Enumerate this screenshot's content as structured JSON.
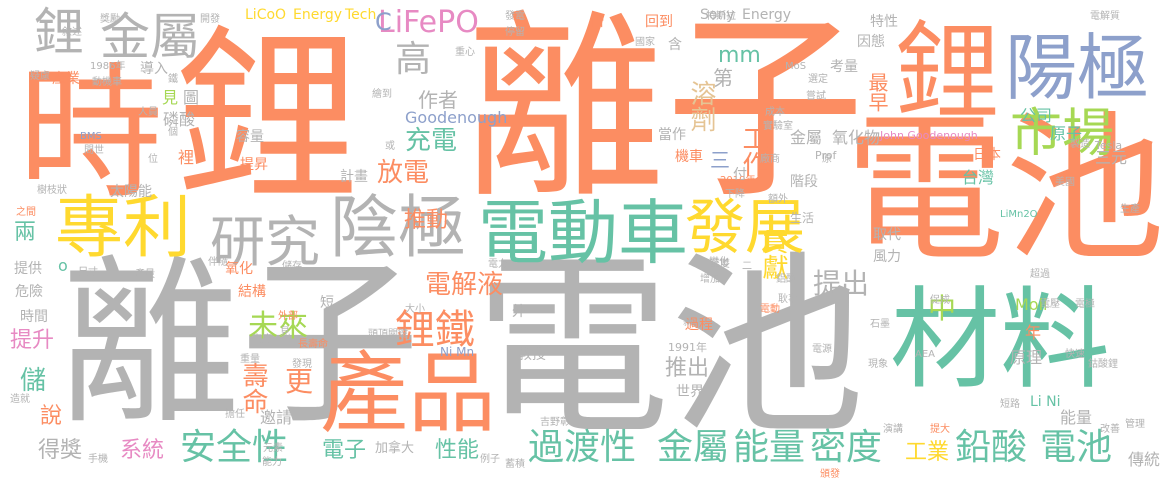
{
  "palette": {
    "orange": "#fc8d62",
    "green": "#66c2a5",
    "blue": "#8da0cb",
    "gray": "#b3b3b3",
    "yellow": "#e5c494",
    "gold": "#ffd92f",
    "pink": "#e78ac3",
    "lime": "#a6d854"
  },
  "words": [
    {
      "text": "離子",
      "color": "orange"
    },
    {
      "text": "電池",
      "color": "gray"
    },
    {
      "text": "離子",
      "color": "gray"
    },
    {
      "text": "電池",
      "color": "orange"
    },
    {
      "text": "鋰",
      "color": "orange"
    },
    {
      "text": "時",
      "color": "orange"
    },
    {
      "text": "材料",
      "color": "green"
    },
    {
      "text": "產品",
      "color": "orange"
    },
    {
      "text": "陽極",
      "color": "blue"
    },
    {
      "text": "鋰",
      "color": "orange"
    },
    {
      "text": "專利",
      "color": "gold"
    },
    {
      "text": "電動車",
      "color": "green"
    },
    {
      "text": "陰極",
      "color": "gray"
    },
    {
      "text": "研究",
      "color": "gray"
    },
    {
      "text": "市場",
      "color": "lime"
    },
    {
      "text": "發展",
      "color": "gold"
    },
    {
      "text": "金屬",
      "color": "gray"
    },
    {
      "text": "鋰",
      "color": "gray"
    },
    {
      "text": "安全性",
      "color": "green"
    },
    {
      "text": "過渡性",
      "color": "green"
    },
    {
      "text": "金屬",
      "color": "green"
    },
    {
      "text": "能量",
      "color": "green"
    },
    {
      "text": "密度",
      "color": "green"
    },
    {
      "text": "鉛酸",
      "color": "green"
    },
    {
      "text": "電池",
      "color": "green"
    },
    {
      "text": "LiFePO",
      "color": "pink"
    },
    {
      "text": "高",
      "color": "gray"
    },
    {
      "text": "鋰鐵",
      "color": "orange"
    },
    {
      "text": "電解液",
      "color": "orange"
    },
    {
      "text": "溶劑",
      "color": "yellow"
    },
    {
      "text": "工作",
      "color": "orange"
    },
    {
      "text": "未來",
      "color": "lime"
    },
    {
      "text": "貢獻",
      "color": "gold"
    },
    {
      "text": "提出",
      "color": "gray"
    },
    {
      "text": "放電",
      "color": "orange"
    },
    {
      "text": "充電",
      "color": "green"
    },
    {
      "text": "推動",
      "color": "orange"
    },
    {
      "text": "壽命",
      "color": "orange"
    },
    {
      "text": "更",
      "color": "orange"
    },
    {
      "text": "中",
      "color": "lime"
    },
    {
      "text": "工業",
      "color": "gold"
    },
    {
      "text": "電子",
      "color": "green"
    },
    {
      "text": "性能",
      "color": "green"
    },
    {
      "text": "系統",
      "color": "pink"
    },
    {
      "text": "得獎",
      "color": "gray"
    },
    {
      "text": "推出",
      "color": "gray"
    },
    {
      "text": "說",
      "color": "orange"
    },
    {
      "text": "儲",
      "color": "green"
    },
    {
      "text": "提升",
      "color": "pink"
    },
    {
      "text": "兩",
      "color": "green"
    },
    {
      "text": "作者",
      "color": "gray"
    },
    {
      "text": "磷酸",
      "color": "gray"
    },
    {
      "text": "見",
      "color": "lime"
    },
    {
      "text": "圖",
      "color": "gray"
    },
    {
      "text": "mm",
      "color": "green"
    },
    {
      "text": "第",
      "color": "gray"
    },
    {
      "text": "最早",
      "color": "orange"
    },
    {
      "text": "公司",
      "color": "green"
    },
    {
      "text": "原子",
      "color": "green"
    },
    {
      "text": "金屬",
      "color": "gray"
    },
    {
      "text": "氧化物",
      "color": "gray"
    },
    {
      "text": "Goodenough",
      "color": "blue"
    },
    {
      "text": "LiCoO",
      "color": "gold"
    },
    {
      "text": "Energy",
      "color": "gold"
    },
    {
      "text": "Tech",
      "color": "gold"
    },
    {
      "text": "Sony",
      "color": "gray"
    },
    {
      "text": "Energy",
      "color": "gray"
    },
    {
      "text": "台灣",
      "color": "green"
    },
    {
      "text": "三元",
      "color": "gray"
    },
    {
      "text": "日本",
      "color": "orange"
    },
    {
      "text": "階段",
      "color": "gray"
    },
    {
      "text": "取代",
      "color": "gray"
    },
    {
      "text": "風力",
      "color": "gray"
    },
    {
      "text": "生活",
      "color": "gray"
    },
    {
      "text": "Moli",
      "color": "lime"
    },
    {
      "text": "年",
      "color": "orange"
    },
    {
      "text": "原理",
      "color": "gray"
    },
    {
      "text": "能量",
      "color": "gray"
    },
    {
      "text": "Li Ni",
      "color": "green"
    },
    {
      "text": "傳統",
      "color": "gray"
    },
    {
      "text": "世界",
      "color": "gray"
    },
    {
      "text": "教授",
      "color": "gray"
    },
    {
      "text": "Ni Mn",
      "color": "blue"
    },
    {
      "text": "邀請",
      "color": "gray"
    },
    {
      "text": "外",
      "color": "gray"
    },
    {
      "text": "短",
      "color": "gray"
    },
    {
      "text": "結構",
      "color": "orange"
    },
    {
      "text": "氧化",
      "color": "orange"
    },
    {
      "text": "危險",
      "color": "gray"
    },
    {
      "text": "時間",
      "color": "gray"
    },
    {
      "text": "提供",
      "color": "gray"
    },
    {
      "text": "太陽能",
      "color": "gray"
    },
    {
      "text": "容量",
      "color": "gray"
    },
    {
      "text": "提昇",
      "color": "orange"
    },
    {
      "text": "計畫",
      "color": "gray"
    },
    {
      "text": "當作",
      "color": "gray"
    },
    {
      "text": "機車",
      "color": "orange"
    },
    {
      "text": "特性",
      "color": "gray"
    },
    {
      "text": "因態",
      "color": "gray"
    },
    {
      "text": "考量",
      "color": "gray"
    },
    {
      "text": "含",
      "color": "gray"
    },
    {
      "text": "回到",
      "color": "orange"
    },
    {
      "text": "倍",
      "color": "orange"
    },
    {
      "text": "導入",
      "color": "gray"
    },
    {
      "text": "產業",
      "color": "orange"
    },
    {
      "text": "過程",
      "color": "orange"
    },
    {
      "text": "加拿大",
      "color": "gray"
    },
    {
      "text": "John Goodenough",
      "color": "pink"
    },
    {
      "text": "Prof",
      "color": "gray"
    },
    {
      "text": "Tesla",
      "color": "gray"
    },
    {
      "text": "特斯拉",
      "color": "gray"
    },
    {
      "text": "電解質",
      "color": "gray"
    },
    {
      "text": "LiMn2O",
      "color": "green"
    },
    {
      "text": "1986年",
      "color": "gray"
    },
    {
      "text": "1991年",
      "color": "gray"
    },
    {
      "text": "2019年",
      "color": "orange"
    },
    {
      "text": "BMS",
      "color": "blue"
    },
    {
      "text": "美國",
      "color": "gray"
    },
    {
      "text": "國家",
      "color": "gray"
    },
    {
      "text": "發電",
      "color": "gray"
    },
    {
      "text": "成本",
      "color": "gray"
    },
    {
      "text": "實驗室",
      "color": "gray"
    },
    {
      "text": "選定",
      "color": "gray"
    },
    {
      "text": "嘗試",
      "color": "gray"
    },
    {
      "text": "製造",
      "color": "gray"
    },
    {
      "text": "樹枝狀",
      "color": "gray"
    },
    {
      "text": "疑慮",
      "color": "gray"
    },
    {
      "text": "問世",
      "color": "gray"
    },
    {
      "text": "之間",
      "color": "orange"
    },
    {
      "text": "尺寸",
      "color": "gray"
    },
    {
      "text": "造就",
      "color": "gray"
    },
    {
      "text": "手機",
      "color": "gray"
    },
    {
      "text": "元素",
      "color": "gray"
    },
    {
      "text": "能力",
      "color": "gray"
    },
    {
      "text": "例子",
      "color": "gray"
    },
    {
      "text": "蓄積",
      "color": "gray"
    },
    {
      "text": "吉野彰",
      "color": "gray"
    },
    {
      "text": "頒發",
      "color": "orange"
    },
    {
      "text": "電壓",
      "color": "gray"
    },
    {
      "text": "演講",
      "color": "gray"
    },
    {
      "text": "提大",
      "color": "orange"
    },
    {
      "text": "改善",
      "color": "gray"
    },
    {
      "text": "管理",
      "color": "gray"
    },
    {
      "text": "生產",
      "color": "gray"
    },
    {
      "text": "超過",
      "color": "gray"
    },
    {
      "text": "促成",
      "color": "gray"
    },
    {
      "text": "電極",
      "color": "gray"
    },
    {
      "text": "石墨",
      "color": "gray"
    },
    {
      "text": "AEA",
      "color": "gray"
    },
    {
      "text": "現象",
      "color": "gray"
    },
    {
      "text": "短路",
      "color": "gray"
    },
    {
      "text": "電源",
      "color": "gray"
    },
    {
      "text": "快速",
      "color": "gray"
    },
    {
      "text": "鈷酸鋰",
      "color": "gray"
    },
    {
      "text": "擔任",
      "color": "gray"
    },
    {
      "text": "變化",
      "color": "gray"
    },
    {
      "text": "增加",
      "color": "gray"
    },
    {
      "text": "鋁酸",
      "color": "gray"
    },
    {
      "text": "耿事",
      "color": "gray"
    },
    {
      "text": "電動",
      "color": "orange"
    },
    {
      "text": "產量",
      "color": "gray"
    },
    {
      "text": "伴隨",
      "color": "gray"
    },
    {
      "text": "儲存",
      "color": "gray"
    },
    {
      "text": "發現",
      "color": "gray"
    },
    {
      "text": "重量",
      "color": "gray"
    },
    {
      "text": "長壽命",
      "color": "orange"
    },
    {
      "text": "外部",
      "color": "orange"
    },
    {
      "text": "見",
      "color": "gray"
    },
    {
      "text": "頭頂關鍵",
      "color": "gray"
    },
    {
      "text": "高度",
      "color": "gray"
    },
    {
      "text": "獎勵",
      "color": "gray"
    },
    {
      "text": "敘述",
      "color": "gray"
    },
    {
      "text": "開發",
      "color": "gray"
    },
    {
      "text": "停留",
      "color": "gray"
    },
    {
      "text": "重心",
      "color": "gray"
    },
    {
      "text": "MoS",
      "color": "gray"
    },
    {
      "text": "人員",
      "color": "gray"
    },
    {
      "text": "動機車",
      "color": "gray"
    },
    {
      "text": "鐵",
      "color": "gray"
    },
    {
      "text": "個",
      "color": "gray"
    },
    {
      "text": "位",
      "color": "gray"
    },
    {
      "text": "繪到",
      "color": "gray"
    },
    {
      "text": "或",
      "color": "gray"
    },
    {
      "text": "廠商",
      "color": "gray"
    },
    {
      "text": "原",
      "color": "gray"
    },
    {
      "text": "下降",
      "color": "gray"
    },
    {
      "text": "額外",
      "color": "gray"
    },
    {
      "text": "新",
      "color": "gray"
    },
    {
      "text": "電力",
      "color": "gray"
    },
    {
      "text": "大小",
      "color": "gray"
    },
    {
      "text": "至雙",
      "color": "gray"
    },
    {
      "text": "二",
      "color": "gray"
    },
    {
      "text": "付",
      "color": "gray"
    },
    {
      "text": "三",
      "color": "blue"
    },
    {
      "text": "C",
      "color": "blue"
    },
    {
      "text": "o",
      "color": "green"
    },
    {
      "text": "裡",
      "color": "orange"
    }
  ]
}
